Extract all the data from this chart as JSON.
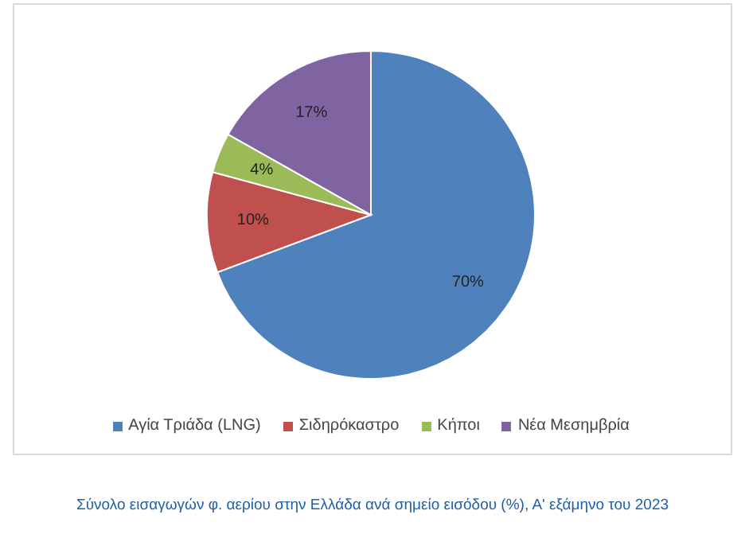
{
  "chart_data": {
    "type": "pie",
    "categories": [
      "Αγία Τριάδα (LNG)",
      "Σιδηρόκαστρο",
      "Κήποι",
      "Νέα Μεσημβρία"
    ],
    "values": [
      70,
      10,
      4,
      17
    ],
    "colors": [
      "#4f81bd",
      "#c0504d",
      "#9bbb59",
      "#8064a2"
    ],
    "value_labels": [
      "70%",
      "10%",
      "4%",
      "17%"
    ],
    "legend": "bottom",
    "annotations": [
      "Σύνολο εισαγωγών φ. αερίου στην Ελλάδα ανά σημείο εισόδου (%), Α' εξάμηνο του 2023"
    ]
  }
}
